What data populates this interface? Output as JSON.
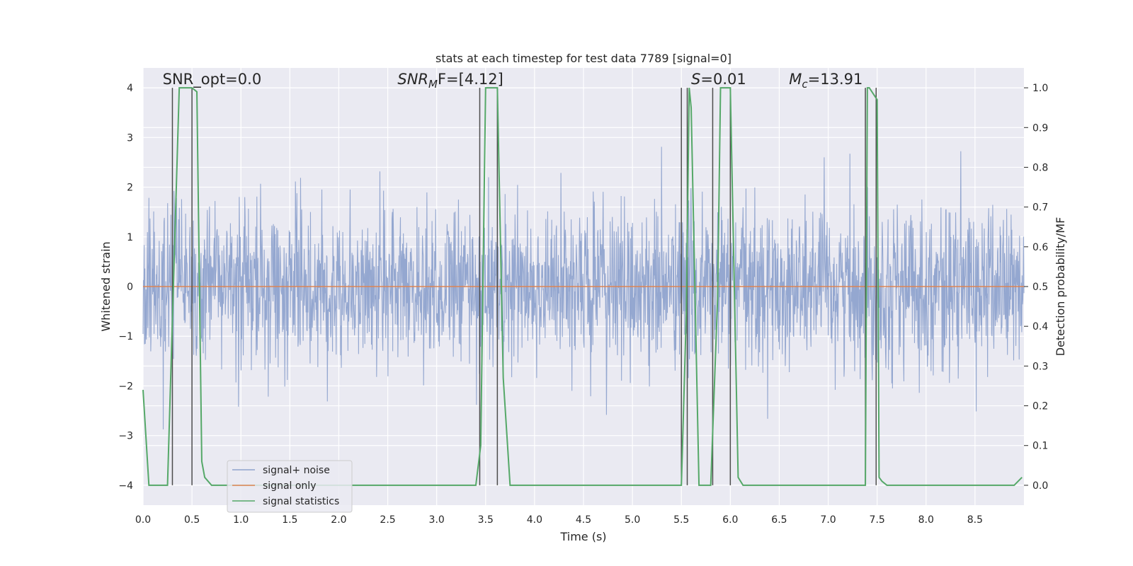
{
  "chart_data": {
    "type": "line",
    "title": "stats at each timestep for test data 7789 [signal=0]",
    "xlabel": "Time (s)",
    "ylabel": "Whitened strain",
    "y2label": "Detection probability/MF",
    "xlim": [
      0.0,
      9.0
    ],
    "ylim": [
      -4.4,
      4.4
    ],
    "y2lim": [
      -0.05,
      1.05
    ],
    "x_ticks": [
      0.0,
      0.5,
      1.0,
      1.5,
      2.0,
      2.5,
      3.0,
      3.5,
      4.0,
      4.5,
      5.0,
      5.5,
      6.0,
      6.5,
      7.0,
      7.5,
      8.0,
      8.5
    ],
    "x_tick_labels": [
      "0.0",
      "0.5",
      "1.0",
      "1.5",
      "2.0",
      "2.5",
      "3.0",
      "3.5",
      "4.0",
      "4.5",
      "5.0",
      "5.5",
      "6.0",
      "6.5",
      "7.0",
      "7.5",
      "8.0",
      "8.5"
    ],
    "y_ticks": [
      -4,
      -3,
      -2,
      -1,
      0,
      1,
      2,
      3,
      4
    ],
    "y_tick_labels": [
      "−4",
      "−3",
      "−2",
      "−1",
      "0",
      "1",
      "2",
      "3",
      "4"
    ],
    "y2_ticks": [
      0.0,
      0.1,
      0.2,
      0.3,
      0.4,
      0.5,
      0.6,
      0.7,
      0.8,
      0.9,
      1.0
    ],
    "y2_tick_labels": [
      "0.0",
      "0.1",
      "0.2",
      "0.3",
      "0.4",
      "0.5",
      "0.6",
      "0.7",
      "0.8",
      "0.9",
      "1.0"
    ],
    "grid": true,
    "legend_position": "bottom-left",
    "series": [
      {
        "name": "signal+ noise",
        "axis": "left",
        "color": "#8fa3cd",
        "style": "noise",
        "noise_std": 0.8,
        "noise_clip": 3.9,
        "noise_samples": 2400,
        "noise_seed": 7789
      },
      {
        "name": "signal only",
        "axis": "left",
        "color": "#dd8452",
        "x": [
          0.0,
          9.0
        ],
        "y": [
          0.0,
          0.0
        ]
      },
      {
        "name": "signal statistics",
        "axis": "right",
        "color": "#55a868",
        "x": [
          0.0,
          0.06,
          0.25,
          0.37,
          0.5,
          0.55,
          0.6,
          0.63,
          0.7,
          3.4,
          3.45,
          3.5,
          3.55,
          3.62,
          3.68,
          3.75,
          5.5,
          5.55,
          5.58,
          5.6,
          5.68,
          5.8,
          5.87,
          5.9,
          6.0,
          6.08,
          6.13,
          7.38,
          7.4,
          7.42,
          7.5,
          7.52,
          7.55,
          7.6,
          8.9,
          8.98
        ],
        "y": [
          0.24,
          0.0,
          0.0,
          1.0,
          1.0,
          0.99,
          0.06,
          0.02,
          0.0,
          0.0,
          0.1,
          1.0,
          1.0,
          1.0,
          0.27,
          0.0,
          0.0,
          0.43,
          1.0,
          0.95,
          0.0,
          0.0,
          0.47,
          1.0,
          1.0,
          0.02,
          0.0,
          0.0,
          1.0,
          1.0,
          0.97,
          0.02,
          0.01,
          0.0,
          0.0,
          0.02
        ]
      }
    ],
    "vertical_markers": [
      0.3,
      0.5,
      3.44,
      3.62,
      5.5,
      5.56,
      5.82,
      6.0,
      7.38,
      7.49
    ],
    "marker_range": [
      -4.0,
      4.0
    ],
    "annotations": [
      {
        "x": 0.2,
        "text": "SNR_opt=0.0",
        "italic_prefix": "",
        "subscript": "",
        "rest": ""
      },
      {
        "x": 2.6,
        "text": "SNR",
        "italic_prefix": "SNR",
        "subscript": "M",
        "rest": "F=[4.12]"
      },
      {
        "x": 5.6,
        "text": "S",
        "italic_prefix": "S",
        "subscript": "",
        "rest": "=0.01"
      },
      {
        "x": 6.6,
        "text": "M",
        "italic_prefix": "M",
        "subscript": "c",
        "rest": "=13.91"
      }
    ],
    "annotation_y": 4.1,
    "legend": [
      "signal+ noise",
      "signal only",
      "signal statistics"
    ]
  },
  "colors": {
    "axes_bg": "#eaeaf2",
    "grid": "#ffffff",
    "marker": "#4d4d4d"
  }
}
